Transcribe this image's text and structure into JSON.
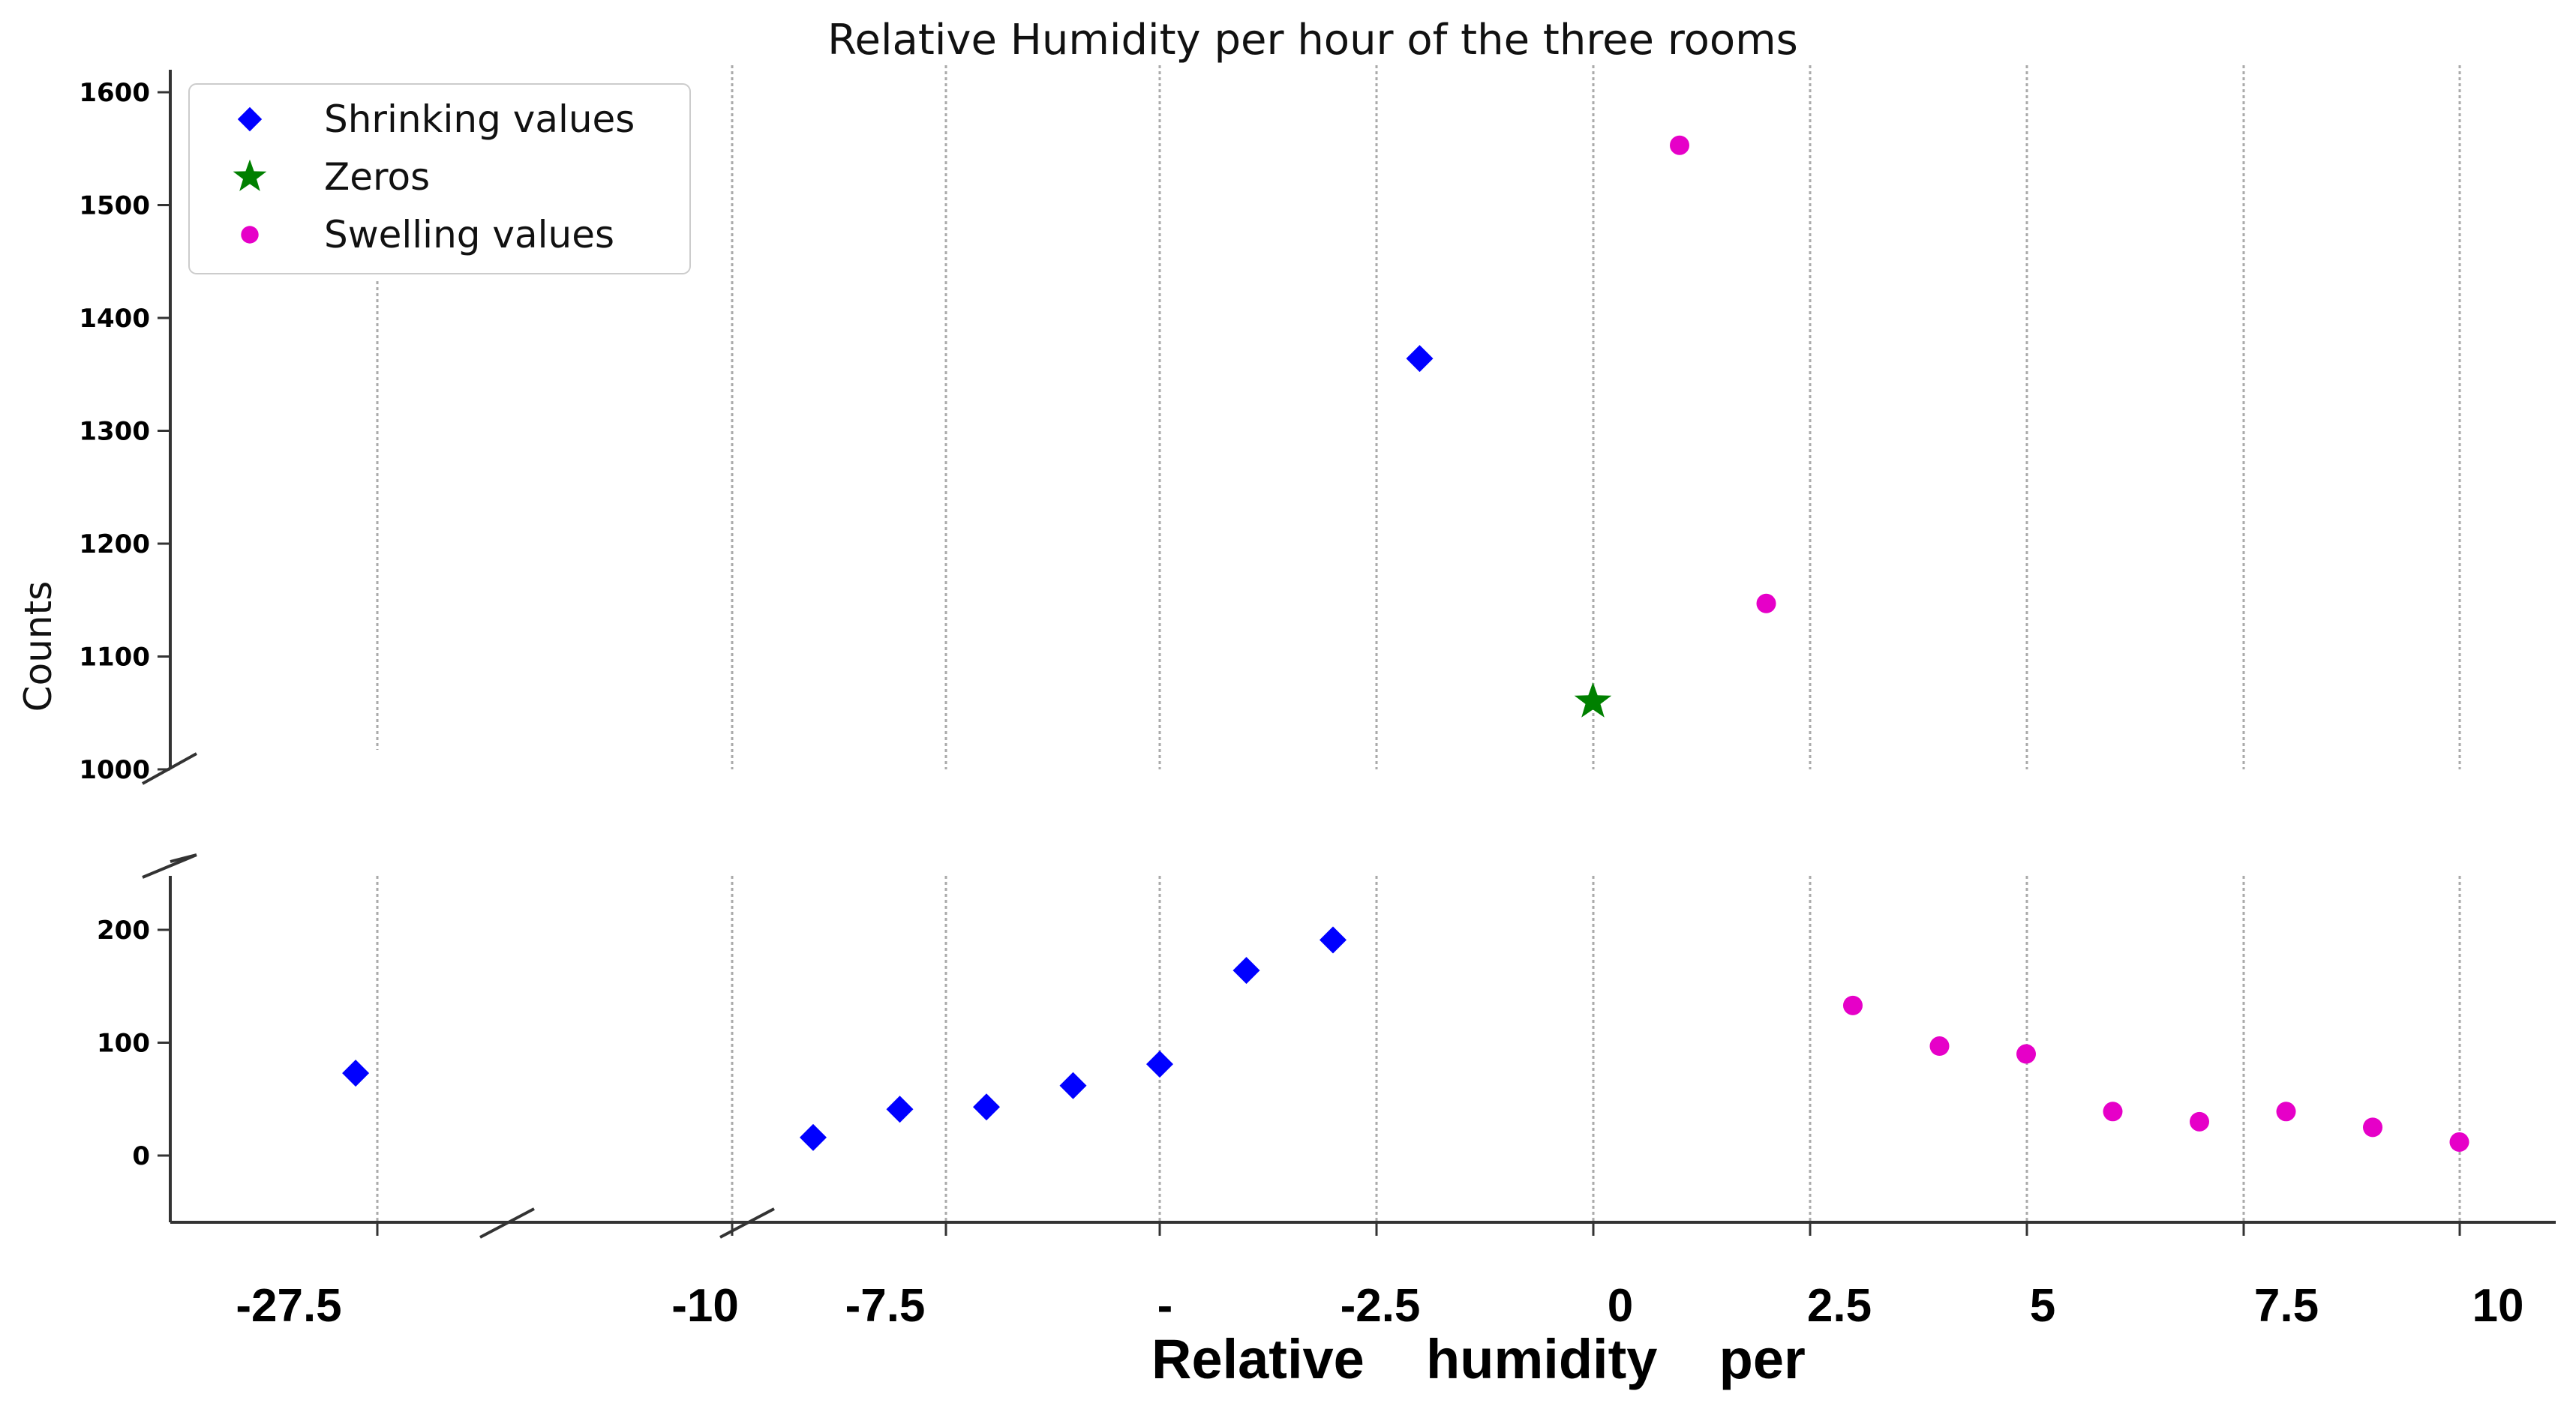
{
  "chart_data": {
    "type": "scatter",
    "title": "Relative Humidity per hour of the three rooms",
    "ylabel": "Counts",
    "xlabel": "Relative    humidity    per",
    "broken_y_axis": true,
    "y_upper_ticks": [
      "1000",
      "1100",
      "1200",
      "1300",
      "1400",
      "1500",
      "1600"
    ],
    "y_lower_ticks": [
      "0",
      "100",
      "200"
    ],
    "x_ticks": [
      "-27.5",
      "-10",
      "-7.5",
      "-",
      "-2.5",
      "0",
      "2.5",
      "5",
      "7.5",
      "10"
    ],
    "grid": "vertical dashed",
    "legend_position": "top-left",
    "series": [
      {
        "name": "Shrinking values",
        "marker": "diamond",
        "color": "#0000ff",
        "points": [
          {
            "x": -28,
            "y": 73
          },
          {
            "x": -9,
            "y": 16
          },
          {
            "x": -8,
            "y": 41
          },
          {
            "x": -7,
            "y": 43
          },
          {
            "x": -6,
            "y": 62
          },
          {
            "x": -5,
            "y": 81
          },
          {
            "x": -4,
            "y": 164
          },
          {
            "x": -3,
            "y": 191
          },
          {
            "x": -2,
            "y": 1364
          }
        ]
      },
      {
        "name": "Zeros",
        "marker": "star",
        "color": "#008000",
        "points": [
          {
            "x": 0,
            "y": 1060
          }
        ]
      },
      {
        "name": "Swelling values",
        "marker": "circle",
        "color": "#e600c8",
        "points": [
          {
            "x": 1,
            "y": 1553
          },
          {
            "x": 2,
            "y": 1147
          },
          {
            "x": 3,
            "y": 133
          },
          {
            "x": 4,
            "y": 97
          },
          {
            "x": 5,
            "y": 90
          },
          {
            "x": 6,
            "y": 39
          },
          {
            "x": 7,
            "y": 30
          },
          {
            "x": 8,
            "y": 39
          },
          {
            "x": 9,
            "y": 25
          },
          {
            "x": 10,
            "y": 12
          }
        ]
      }
    ]
  }
}
